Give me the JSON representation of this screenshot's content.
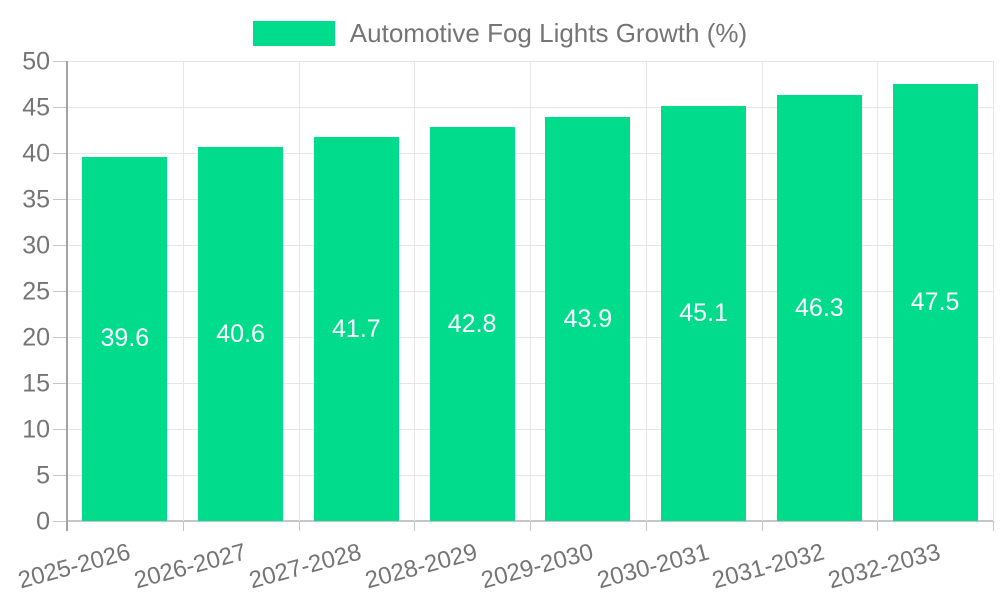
{
  "legend": {
    "label": "Automotive Fog Lights Growth (%)"
  },
  "chart_data": {
    "type": "bar",
    "title": "Automotive Fog Lights Growth (%)",
    "categories": [
      "2025-2026",
      "2026-2027",
      "2027-2028",
      "2028-2029",
      "2029-2030",
      "2030-2031",
      "2031-2032",
      "2032-2033"
    ],
    "values": [
      39.6,
      40.6,
      41.7,
      42.8,
      43.9,
      45.1,
      46.3,
      47.5
    ],
    "value_labels": [
      "39.6",
      "40.6",
      "41.7",
      "42.8",
      "43.9",
      "45.1",
      "46.3",
      "47.5"
    ],
    "xlabel": "",
    "ylabel": "",
    "ylim": [
      0,
      50
    ],
    "ytick_step": 5,
    "ytick_labels": [
      "0",
      "5",
      "10",
      "15",
      "20",
      "25",
      "30",
      "35",
      "40",
      "45",
      "50"
    ],
    "grid": true,
    "legend_position": "top",
    "colors": {
      "bar": "#00DC8C",
      "value_label": "#FFFFFF",
      "axis_text": "#757575",
      "gridline": "#E6E6E6",
      "y_axis_line": "#A3A3A3",
      "x_axis_line": "#C6C6C6"
    }
  }
}
